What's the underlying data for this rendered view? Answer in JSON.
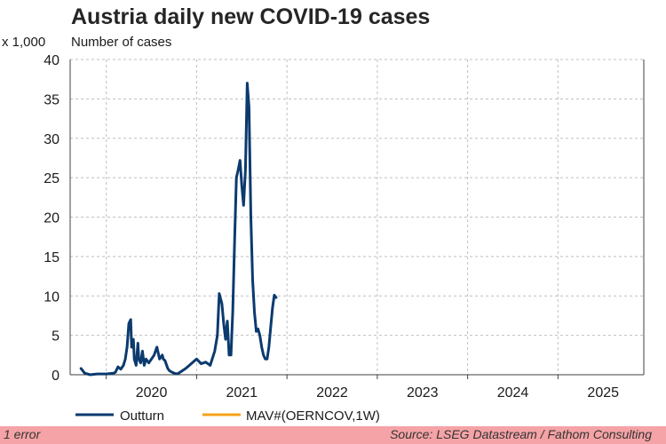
{
  "chart_data": {
    "type": "line",
    "title": "Austria daily new COVID-19 cases",
    "unit_multiplier": "x 1,000",
    "ylabel": "Number of cases",
    "ylim": [
      0,
      40
    ],
    "y_ticks": [
      "0",
      "5",
      "10",
      "15",
      "20",
      "25",
      "30",
      "35",
      "40"
    ],
    "xlim": [
      2019.6,
      2025.95
    ],
    "x_ticks": [
      "2020",
      "2021",
      "2022",
      "2023",
      "2024",
      "2025"
    ],
    "grid": true,
    "legend_position": "bottom",
    "series": [
      {
        "name": "Outturn",
        "color": "#0b3a6e",
        "x": [
          2019.72,
          2019.76,
          2019.82,
          2019.9,
          2020.0,
          2020.08,
          2020.1,
          2020.13,
          2020.16,
          2020.19,
          2020.21,
          2020.23,
          2020.25,
          2020.27,
          2020.28,
          2020.3,
          2020.31,
          2020.33,
          2020.35,
          2020.36,
          2020.38,
          2020.4,
          2020.42,
          2020.44,
          2020.47,
          2020.5,
          2020.53,
          2020.56,
          2020.59,
          2020.62,
          2020.63,
          2020.65,
          2020.68,
          2020.7,
          2020.73,
          2020.75,
          2020.78,
          2020.8,
          2020.84,
          2020.88,
          2020.92,
          2021.0,
          2021.05,
          2021.1,
          2021.15,
          2021.2,
          2021.23,
          2021.25,
          2021.28,
          2021.3,
          2021.32,
          2021.34,
          2021.36,
          2021.38,
          2021.4,
          2021.42,
          2021.44,
          2021.46,
          2021.48,
          2021.5,
          2021.52,
          2021.54,
          2021.56,
          2021.58,
          2021.6,
          2021.62,
          2021.64,
          2021.66,
          2021.68,
          2021.7,
          2021.72,
          2021.74,
          2021.76,
          2021.78,
          2021.8,
          2021.82,
          2021.84,
          2021.86,
          2021.88,
          2021.9,
          2021.92,
          2021.94,
          2021.96,
          2021.98,
          2022.0,
          2022.02
        ],
        "y": [
          0.8,
          0.2,
          0.0,
          0.1,
          0.1,
          0.2,
          0.3,
          1.0,
          0.7,
          1.2,
          2.0,
          3.5,
          6.5,
          7.0,
          3.5,
          4.5,
          2.0,
          1.2,
          4.0,
          2.0,
          1.5,
          3.0,
          1.2,
          2.0,
          1.5,
          2.0,
          2.5,
          3.5,
          2.0,
          2.5,
          2.0,
          1.8,
          0.8,
          0.5,
          0.3,
          0.2,
          0.1,
          0.2,
          0.5,
          0.8,
          1.2,
          2.0,
          1.4,
          1.6,
          1.2,
          3.0,
          5.0,
          10.3,
          9.0,
          6.5,
          4.5,
          6.8,
          2.5,
          2.5,
          8.0,
          17.0,
          25.0,
          26.0,
          27.2,
          24.0,
          21.5,
          26.0,
          37.0,
          34.0,
          20.0,
          12.0,
          8.0,
          5.5,
          5.8,
          5.0,
          3.5,
          2.5,
          2.0,
          2.0,
          3.5,
          6.0,
          8.5,
          10.1,
          9.8,
          null,
          null,
          null,
          null,
          null,
          null,
          null
        ]
      },
      {
        "name": "MAV#(OERNCOV,1W)",
        "color": "#f5a31a",
        "x": [],
        "y": []
      }
    ]
  },
  "footer": {
    "error_text": "1 error",
    "source_text": "Source: LSEG Datastream / Fathom Consulting"
  }
}
